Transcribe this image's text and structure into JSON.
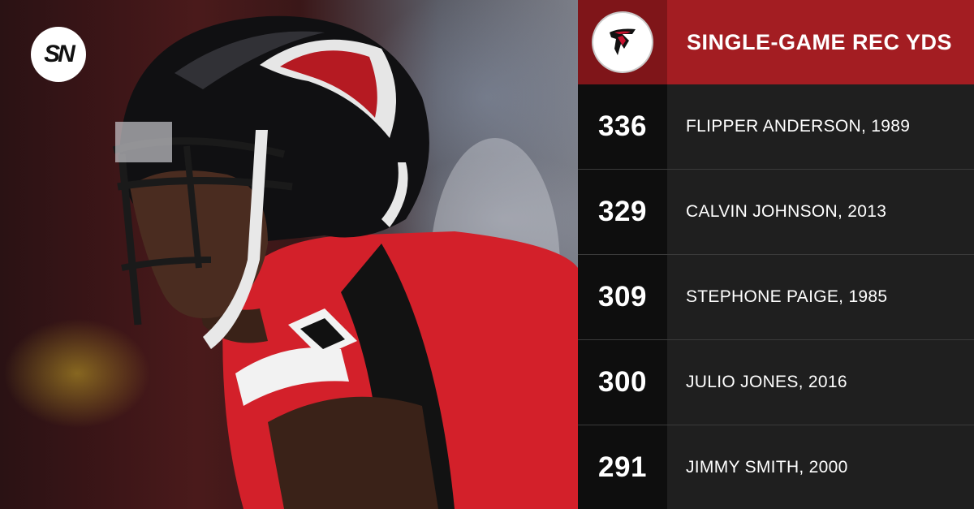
{
  "brand": {
    "logo_text": "SN"
  },
  "header": {
    "title": "SINGLE-GAME REC YDS",
    "team_logo": "falcons-logo-icon"
  },
  "rows": [
    {
      "yards": "336",
      "player": "FLIPPER ANDERSON, 1989"
    },
    {
      "yards": "329",
      "player": "CALVIN JOHNSON, 2013"
    },
    {
      "yards": "309",
      "player": "STEPHONE PAIGE, 1985"
    },
    {
      "yards": "300",
      "player": "JULIO JONES, 2016"
    },
    {
      "yards": "291",
      "player": "JIMMY SMITH, 2000"
    }
  ],
  "colors": {
    "header_red": "#a31d22",
    "header_dark_red": "#7f1519",
    "row_dark": "#0e0e0e",
    "row_mid": "#1f1f1f",
    "jersey_red": "#d3202a"
  }
}
